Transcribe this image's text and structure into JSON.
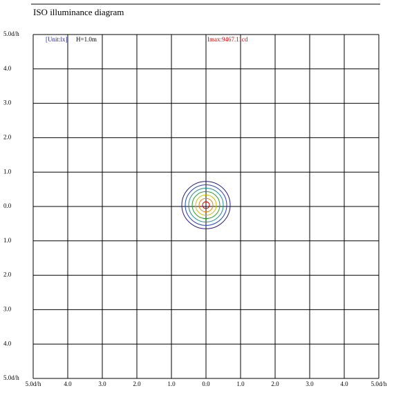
{
  "chart_data": {
    "type": "iso",
    "title": "ISO illuminance diagram",
    "annotations": [
      {
        "text": "[Unit:lx]",
        "color": "#1a1a9a"
      },
      {
        "text": "H=1.0m",
        "color": "#000000"
      },
      {
        "text": "Imax:9467.11cd",
        "color": "#e00000"
      }
    ],
    "xlim": [
      -5,
      5
    ],
    "ylim": [
      -5,
      5
    ],
    "xticks": [
      {
        "value": -5,
        "label": "5.0d/h"
      },
      {
        "value": -4,
        "label": "4.0"
      },
      {
        "value": -3,
        "label": "3.0"
      },
      {
        "value": -2,
        "label": "2.0"
      },
      {
        "value": -1,
        "label": "1.0"
      },
      {
        "value": 0,
        "label": "0.0"
      },
      {
        "value": 1,
        "label": "1.0"
      },
      {
        "value": 2,
        "label": "2.0"
      },
      {
        "value": 3,
        "label": "3.0"
      },
      {
        "value": 4,
        "label": "4.0"
      },
      {
        "value": 5,
        "label": "5.0d/h"
      }
    ],
    "yticks": [
      {
        "value": 5,
        "label": "5.0d/h"
      },
      {
        "value": 4,
        "label": "4.0"
      },
      {
        "value": 3,
        "label": "3.0"
      },
      {
        "value": 2,
        "label": "2.0"
      },
      {
        "value": 1,
        "label": "1.0"
      },
      {
        "value": 0,
        "label": "0.0"
      },
      {
        "value": -1,
        "label": "1.0"
      },
      {
        "value": -2,
        "label": "2.0"
      },
      {
        "value": -3,
        "label": "3.0"
      },
      {
        "value": -4,
        "label": "4.0"
      },
      {
        "value": -5,
        "label": "5.0d/h"
      }
    ],
    "grid": true,
    "contours": [
      {
        "color": "#2a1a7a",
        "radius": 0.7
      },
      {
        "color": "#1f3fd0",
        "radius": 0.6
      },
      {
        "color": "#159090",
        "radius": 0.5
      },
      {
        "color": "#2aa02a",
        "radius": 0.4
      },
      {
        "color": "#d0c000",
        "radius": 0.3
      },
      {
        "color": "#f08000",
        "radius": 0.2
      },
      {
        "color": "#e00000",
        "radius": 0.1
      }
    ]
  }
}
